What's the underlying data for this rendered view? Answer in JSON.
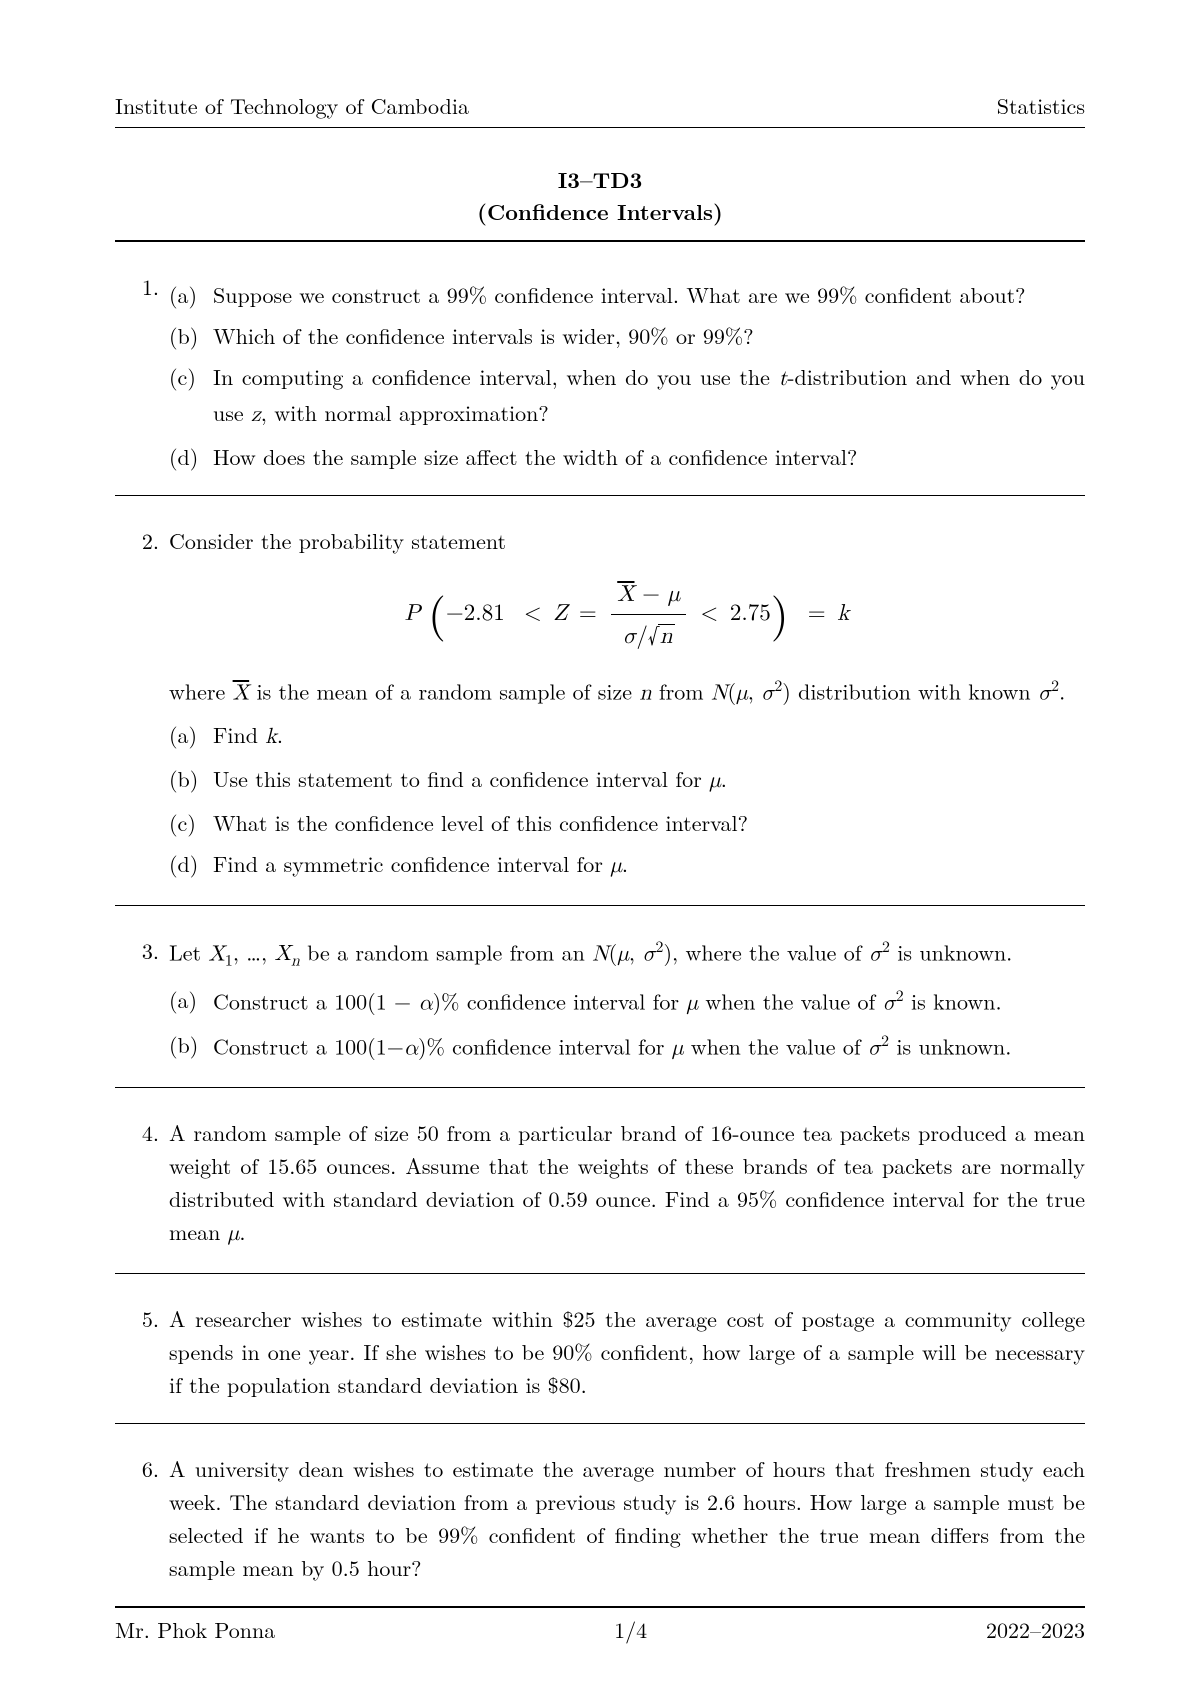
{
  "header": {
    "left": "Institute of Technology of Cambodia",
    "right": "Statistics"
  },
  "title": {
    "line1": "I3–TD3",
    "line2": "(Confidence Intervals)"
  },
  "problems": [
    {
      "num": "1.",
      "intro": "",
      "subs": [
        {
          "label": "(a)",
          "text": "Suppose we construct a 99% confidence interval. What are we 99% confident about?"
        },
        {
          "label": "(b)",
          "text": "Which of the confidence intervals is wider, 90% or 99%?"
        },
        {
          "label": "(c)",
          "text": "In computing a confidence interval, when do you use the t-distribution and when do you use z, with normal approximation?"
        },
        {
          "label": "(d)",
          "text": "How does the sample size affect the width of a confidence interval?"
        }
      ]
    },
    {
      "num": "2.",
      "intro": "Consider the probability statement",
      "formula": {
        "left_bound": "−2.81",
        "right_bound": "2.75",
        "equals": "k"
      },
      "post": "where X̄ is the mean of a random sample of size n from N(μ, σ²) distribution with known σ².",
      "subs": [
        {
          "label": "(a)",
          "text": "Find k."
        },
        {
          "label": "(b)",
          "text": "Use this statement to find a confidence interval for μ."
        },
        {
          "label": "(c)",
          "text": "What is the confidence level of this confidence interval?"
        },
        {
          "label": "(d)",
          "text": "Find a symmetric confidence interval for μ."
        }
      ]
    },
    {
      "num": "3.",
      "intro": "Let X₁, …, Xₙ be a random sample from an N(μ, σ²), where the value of σ² is unknown.",
      "subs": [
        {
          "label": "(a)",
          "text": "Construct a 100(1 − α)% confidence interval for μ when the value of σ² is known."
        },
        {
          "label": "(b)",
          "text": "Construct a 100(1−α)% confidence interval for μ when the value of σ² is unknown."
        }
      ]
    },
    {
      "num": "4.",
      "intro": "A random sample of size 50 from a particular brand of 16-ounce tea packets produced a mean weight of 15.65 ounces. Assume that the weights of these brands of tea packets are normally distributed with standard deviation of 0.59 ounce. Find a 95% confidence interval for the true mean μ."
    },
    {
      "num": "5.",
      "intro": "A researcher wishes to estimate within $25 the average cost of postage a community college spends in one year. If she wishes to be 90% confident, how large of a sample will be necessary if the population standard deviation is $80."
    },
    {
      "num": "6.",
      "intro": "A university dean wishes to estimate the average number of hours that freshmen study each week. The standard deviation from a previous study is 2.6 hours. How large a sample must be selected if he wants to be 99% confident of finding whether the true mean differs from the sample mean by 0.5 hour?"
    }
  ],
  "footer": {
    "left": "Mr. Phok Ponna",
    "center": "1/4",
    "right": "2022–2023"
  }
}
